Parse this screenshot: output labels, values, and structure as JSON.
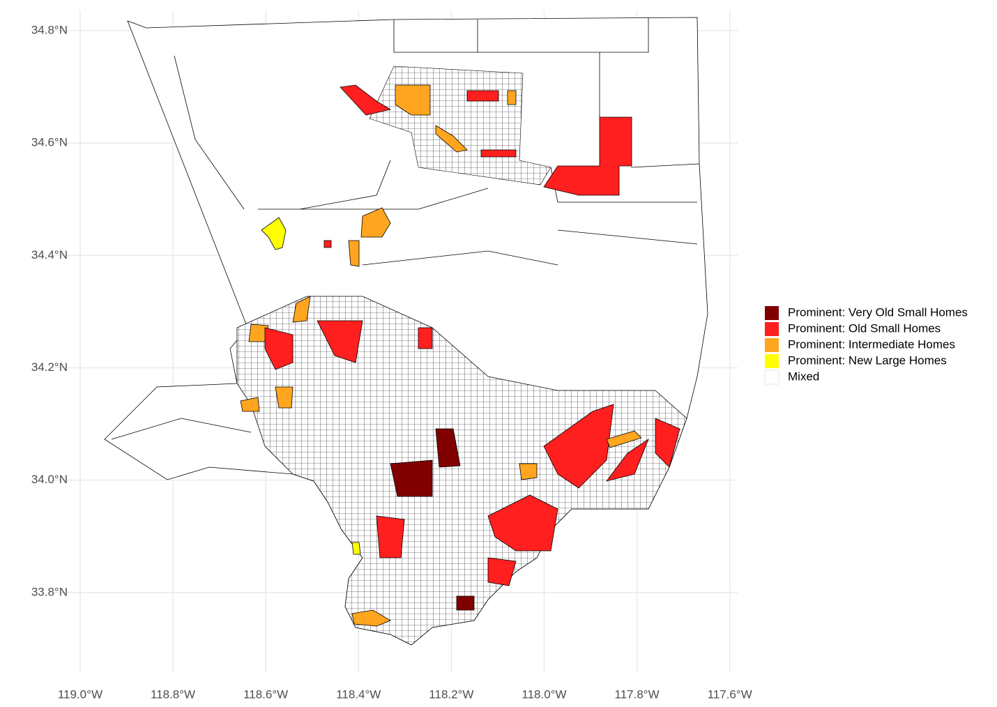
{
  "chart_data": {
    "type": "map",
    "xlim": [
      -119.06,
      -117.583
    ],
    "ylim": [
      33.657,
      34.836
    ],
    "xticks": [
      {
        "value": -119.0,
        "label": "119.0°W"
      },
      {
        "value": -118.8,
        "label": "118.8°W"
      },
      {
        "value": -118.6,
        "label": "118.6°W"
      },
      {
        "value": -118.4,
        "label": "118.4°W"
      },
      {
        "value": -118.2,
        "label": "118.2°W"
      },
      {
        "value": -118.0,
        "label": "118.0°W"
      },
      {
        "value": -117.8,
        "label": "117.8°W"
      },
      {
        "value": -117.6,
        "label": "117.6°W"
      }
    ],
    "yticks": [
      {
        "value": 33.8,
        "label": "33.8°N"
      },
      {
        "value": 34.0,
        "label": "34.0°N"
      },
      {
        "value": 34.2,
        "label": "34.2°N"
      },
      {
        "value": 34.4,
        "label": "34.4°N"
      },
      {
        "value": 34.6,
        "label": "34.6°N"
      },
      {
        "value": 34.8,
        "label": "34.8°N"
      }
    ],
    "grid": true,
    "legend": [
      {
        "label": "Prominent: Very Old Small Homes",
        "color": "#800000"
      },
      {
        "label": "Prominent: Old Small Homes",
        "color": "#ff1f1f"
      },
      {
        "label": "Prominent: Intermediate Homes",
        "color": "#ffa51f"
      },
      {
        "label": "Prominent: New Large Homes",
        "color": "#ffff00"
      },
      {
        "label": "Mixed",
        "color": "#ffffff"
      }
    ]
  }
}
